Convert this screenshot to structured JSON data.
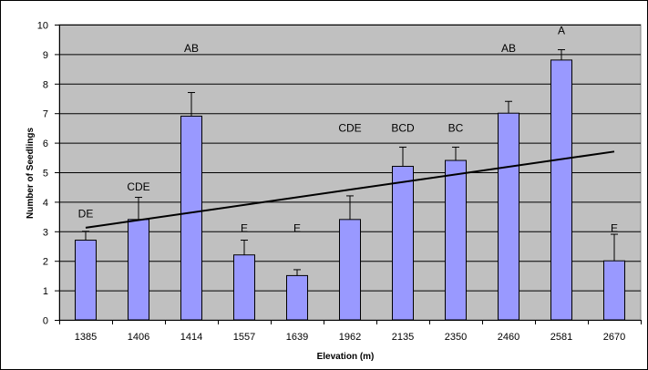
{
  "chart_data": {
    "type": "bar",
    "title": "",
    "xlabel": "Elevation (m)",
    "ylabel": "Number of Seedlings",
    "categories": [
      "1385",
      "1406",
      "1414",
      "1557",
      "1639",
      "1962",
      "2135",
      "2350",
      "2460",
      "2581",
      "2670"
    ],
    "values": [
      2.7,
      3.4,
      6.9,
      2.2,
      1.5,
      3.4,
      5.2,
      5.4,
      7.0,
      8.8,
      2.0
    ],
    "error_upper": [
      0.3,
      0.75,
      0.8,
      0.5,
      0.2,
      0.8,
      0.65,
      0.45,
      0.4,
      0.35,
      0.9
    ],
    "letters": [
      "DE",
      "CDE",
      "AB",
      "E",
      "E",
      "CDE",
      "BCD",
      "BC",
      "AB",
      "A",
      "E"
    ],
    "letter_y": [
      3.6,
      4.5,
      9.2,
      3.1,
      3.1,
      6.5,
      6.5,
      6.5,
      9.2,
      9.8,
      3.1
    ],
    "trendline": {
      "start_category": "1385",
      "end_category": "2670",
      "start_value": 3.12,
      "end_value": 5.7
    },
    "ylim": [
      0,
      10
    ],
    "yticks": [
      0,
      1,
      2,
      3,
      4,
      5,
      6,
      7,
      8,
      9,
      10
    ],
    "grid": true,
    "legend": "none",
    "colors": {
      "plot_background": "#c0c0c0",
      "bar_fill": "#9999ff",
      "bar_stroke": "#000000",
      "gridline": "#000000",
      "trendline": "#000000"
    }
  }
}
